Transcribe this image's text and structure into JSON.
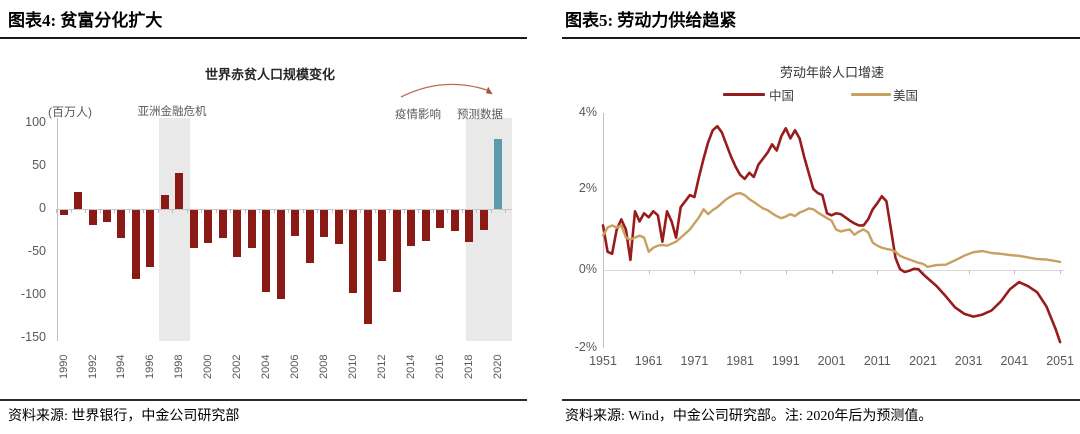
{
  "left": {
    "header": "图表4: 贫富分化扩大",
    "chart_title": "世界赤贫人口规模变化",
    "unit_label": "(百万人)",
    "annotation_asian_crisis": "亚洲金融危机",
    "annotation_covid": "疫情影响",
    "annotation_forecast": "预测数据",
    "source": "资料来源: 世界银行，中金公司研究部"
  },
  "right": {
    "header": "图表5: 劳动力供给趋紧",
    "chart_title": "劳动年龄人口增速",
    "source": "资料来源: Wind，中金公司研究部。注: 2020年后为预测值。"
  },
  "chart_data": [
    {
      "type": "bar",
      "title": "世界赤贫人口规模变化",
      "ylabel": "(百万人)",
      "ylim": [
        -150,
        100
      ],
      "y_ticks": [
        "100",
        "50",
        "0",
        "-50",
        "-100",
        "-150"
      ],
      "categories": [
        1990,
        1991,
        1992,
        1993,
        1994,
        1995,
        1996,
        1997,
        1998,
        1999,
        2000,
        2001,
        2002,
        2003,
        2004,
        2005,
        2006,
        2007,
        2008,
        2009,
        2010,
        2011,
        2012,
        2013,
        2014,
        2015,
        2016,
        2017,
        2018,
        2019,
        2020
      ],
      "values": [
        -6,
        20,
        -18,
        -14,
        -33,
        -81,
        -67,
        17,
        42,
        -44,
        -39,
        -33,
        -55,
        -44,
        -96,
        -104,
        -30,
        -62,
        -31,
        -40,
        -97,
        -133,
        -60,
        -96,
        -42,
        -36,
        -21,
        -24,
        -38,
        -23,
        82
      ],
      "bar_color": "#8a1a16",
      "forecast_bar": {
        "year": 2020,
        "color": "#5b9bab"
      },
      "shaded_regions": [
        {
          "label": "亚洲金融危机",
          "from": 1997,
          "to": 1998
        },
        {
          "label": "预测数据",
          "from": 2018,
          "to": 2020
        }
      ],
      "annotation_arrow": {
        "from_label": "疫情影响",
        "to_label": "预测数据",
        "color": "#be6a50"
      }
    },
    {
      "type": "line",
      "title": "劳动年龄人口增速",
      "ylim": [
        -2,
        4
      ],
      "y_ticks": [
        "4%",
        "2%",
        "0%",
        "-2%"
      ],
      "x_ticks": [
        1951,
        1961,
        1971,
        1981,
        1991,
        2001,
        2011,
        2021,
        2031,
        2041,
        2051
      ],
      "legend_position": "top",
      "series": [
        {
          "name": "中国",
          "color": "#9a1b1c",
          "points": [
            [
              1951,
              1.1
            ],
            [
              1952,
              0.45
            ],
            [
              1953,
              0.4
            ],
            [
              1954,
              1.0
            ],
            [
              1955,
              1.25
            ],
            [
              1956,
              1.0
            ],
            [
              1957,
              0.25
            ],
            [
              1958,
              1.45
            ],
            [
              1959,
              1.2
            ],
            [
              1960,
              1.4
            ],
            [
              1961,
              1.3
            ],
            [
              1962,
              1.45
            ],
            [
              1963,
              1.35
            ],
            [
              1964,
              0.7
            ],
            [
              1965,
              1.45
            ],
            [
              1966,
              1.2
            ],
            [
              1967,
              0.8
            ],
            [
              1968,
              1.55
            ],
            [
              1969,
              1.7
            ],
            [
              1970,
              1.85
            ],
            [
              1971,
              1.8
            ],
            [
              1972,
              2.3
            ],
            [
              1973,
              2.75
            ],
            [
              1974,
              3.15
            ],
            [
              1975,
              3.45
            ],
            [
              1976,
              3.55
            ],
            [
              1977,
              3.4
            ],
            [
              1978,
              3.1
            ],
            [
              1979,
              2.8
            ],
            [
              1980,
              2.55
            ],
            [
              1981,
              2.35
            ],
            [
              1982,
              2.25
            ],
            [
              1983,
              2.4
            ],
            [
              1984,
              2.3
            ],
            [
              1985,
              2.6
            ],
            [
              1986,
              2.75
            ],
            [
              1987,
              2.9
            ],
            [
              1988,
              3.1
            ],
            [
              1989,
              2.95
            ],
            [
              1990,
              3.3
            ],
            [
              1991,
              3.5
            ],
            [
              1992,
              3.25
            ],
            [
              1993,
              3.45
            ],
            [
              1994,
              3.25
            ],
            [
              1995,
              2.8
            ],
            [
              1996,
              2.4
            ],
            [
              1997,
              2.0
            ],
            [
              1998,
              1.9
            ],
            [
              1999,
              1.85
            ],
            [
              2000,
              1.4
            ],
            [
              2001,
              1.35
            ],
            [
              2002,
              1.4
            ],
            [
              2003,
              1.38
            ],
            [
              2004,
              1.3
            ],
            [
              2005,
              1.22
            ],
            [
              2006,
              1.15
            ],
            [
              2007,
              1.1
            ],
            [
              2008,
              1.1
            ],
            [
              2009,
              1.25
            ],
            [
              2010,
              1.5
            ],
            [
              2011,
              1.65
            ],
            [
              2012,
              1.82
            ],
            [
              2013,
              1.7
            ],
            [
              2014,
              1.0
            ],
            [
              2015,
              0.3
            ],
            [
              2016,
              0.02
            ],
            [
              2017,
              -0.05
            ],
            [
              2018,
              -0.02
            ],
            [
              2019,
              0.03
            ],
            [
              2020,
              0.02
            ],
            [
              2021,
              -0.1
            ],
            [
              2022,
              -0.2
            ],
            [
              2024,
              -0.4
            ],
            [
              2026,
              -0.65
            ],
            [
              2028,
              -0.92
            ],
            [
              2030,
              -1.08
            ],
            [
              2032,
              -1.15
            ],
            [
              2034,
              -1.1
            ],
            [
              2036,
              -1.0
            ],
            [
              2038,
              -0.78
            ],
            [
              2040,
              -0.48
            ],
            [
              2042,
              -0.3
            ],
            [
              2044,
              -0.4
            ],
            [
              2046,
              -0.55
            ],
            [
              2048,
              -0.9
            ],
            [
              2050,
              -1.45
            ],
            [
              2051,
              -1.78
            ]
          ]
        },
        {
          "name": "美国",
          "color": "#c9a05f",
          "points": [
            [
              1951,
              0.85
            ],
            [
              1952,
              1.05
            ],
            [
              1953,
              1.1
            ],
            [
              1954,
              1.05
            ],
            [
              1955,
              1.1
            ],
            [
              1956,
              0.8
            ],
            [
              1957,
              0.75
            ],
            [
              1958,
              0.8
            ],
            [
              1959,
              0.85
            ],
            [
              1960,
              0.8
            ],
            [
              1961,
              0.45
            ],
            [
              1962,
              0.55
            ],
            [
              1963,
              0.6
            ],
            [
              1964,
              0.62
            ],
            [
              1965,
              0.6
            ],
            [
              1966,
              0.65
            ],
            [
              1967,
              0.7
            ],
            [
              1968,
              0.8
            ],
            [
              1969,
              0.9
            ],
            [
              1970,
              1.0
            ],
            [
              1971,
              1.15
            ],
            [
              1972,
              1.3
            ],
            [
              1973,
              1.5
            ],
            [
              1974,
              1.38
            ],
            [
              1975,
              1.48
            ],
            [
              1976,
              1.55
            ],
            [
              1977,
              1.65
            ],
            [
              1978,
              1.75
            ],
            [
              1979,
              1.82
            ],
            [
              1980,
              1.88
            ],
            [
              1981,
              1.9
            ],
            [
              1982,
              1.85
            ],
            [
              1983,
              1.75
            ],
            [
              1984,
              1.68
            ],
            [
              1985,
              1.6
            ],
            [
              1986,
              1.52
            ],
            [
              1987,
              1.48
            ],
            [
              1988,
              1.4
            ],
            [
              1989,
              1.33
            ],
            [
              1990,
              1.28
            ],
            [
              1991,
              1.32
            ],
            [
              1992,
              1.38
            ],
            [
              1993,
              1.33
            ],
            [
              1994,
              1.42
            ],
            [
              1995,
              1.46
            ],
            [
              1996,
              1.52
            ],
            [
              1997,
              1.5
            ],
            [
              1998,
              1.42
            ],
            [
              1999,
              1.35
            ],
            [
              2000,
              1.28
            ],
            [
              2001,
              1.22
            ],
            [
              2002,
              1.0
            ],
            [
              2003,
              0.95
            ],
            [
              2004,
              0.98
            ],
            [
              2005,
              1.0
            ],
            [
              2006,
              0.87
            ],
            [
              2007,
              0.95
            ],
            [
              2008,
              1.0
            ],
            [
              2009,
              0.93
            ],
            [
              2010,
              0.68
            ],
            [
              2011,
              0.6
            ],
            [
              2012,
              0.55
            ],
            [
              2013,
              0.52
            ],
            [
              2014,
              0.5
            ],
            [
              2015,
              0.45
            ],
            [
              2016,
              0.35
            ],
            [
              2017,
              0.3
            ],
            [
              2018,
              0.26
            ],
            [
              2019,
              0.22
            ],
            [
              2020,
              0.18
            ],
            [
              2021,
              0.15
            ],
            [
              2022,
              0.08
            ],
            [
              2024,
              0.12
            ],
            [
              2026,
              0.13
            ],
            [
              2028,
              0.24
            ],
            [
              2030,
              0.35
            ],
            [
              2032,
              0.44
            ],
            [
              2034,
              0.47
            ],
            [
              2036,
              0.42
            ],
            [
              2038,
              0.4
            ],
            [
              2040,
              0.37
            ],
            [
              2042,
              0.35
            ],
            [
              2044,
              0.31
            ],
            [
              2046,
              0.27
            ],
            [
              2048,
              0.26
            ],
            [
              2050,
              0.22
            ],
            [
              2051,
              0.2
            ]
          ]
        }
      ]
    }
  ]
}
